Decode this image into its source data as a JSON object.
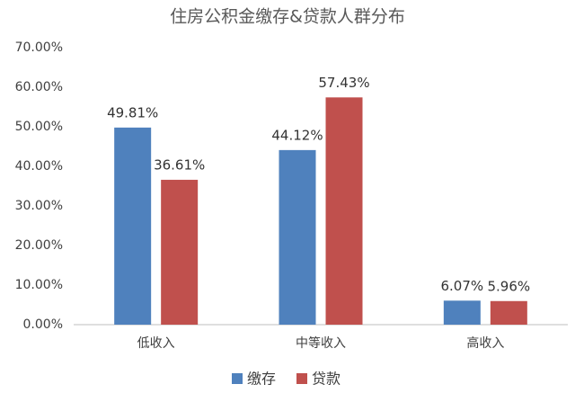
{
  "chart_data": {
    "type": "bar",
    "title": "住房公积金缴存&贷款人群分布",
    "categories": [
      "低收入",
      "中等收入",
      "高收入"
    ],
    "series": [
      {
        "name": "缴存",
        "color": "#4f81bd",
        "values": [
          49.81,
          44.12,
          6.07
        ],
        "value_labels": [
          "49.81%",
          "44.12%",
          "6.07%"
        ]
      },
      {
        "name": "贷款",
        "color": "#c0504d",
        "values": [
          36.61,
          57.43,
          5.96
        ],
        "value_labels": [
          "36.61%",
          "57.43%",
          "5.96%"
        ]
      }
    ],
    "ylim": [
      0,
      70
    ],
    "yticks": [
      {
        "value": 0,
        "label": "0.00%"
      },
      {
        "value": 10,
        "label": "10.00%"
      },
      {
        "value": 20,
        "label": "20.00%"
      },
      {
        "value": 30,
        "label": "30.00%"
      },
      {
        "value": 40,
        "label": "40.00%"
      },
      {
        "value": 50,
        "label": "50.00%"
      },
      {
        "value": 60,
        "label": "60.00%"
      },
      {
        "value": 70,
        "label": "70.00%"
      }
    ],
    "grid": false,
    "legend": "bottom"
  }
}
